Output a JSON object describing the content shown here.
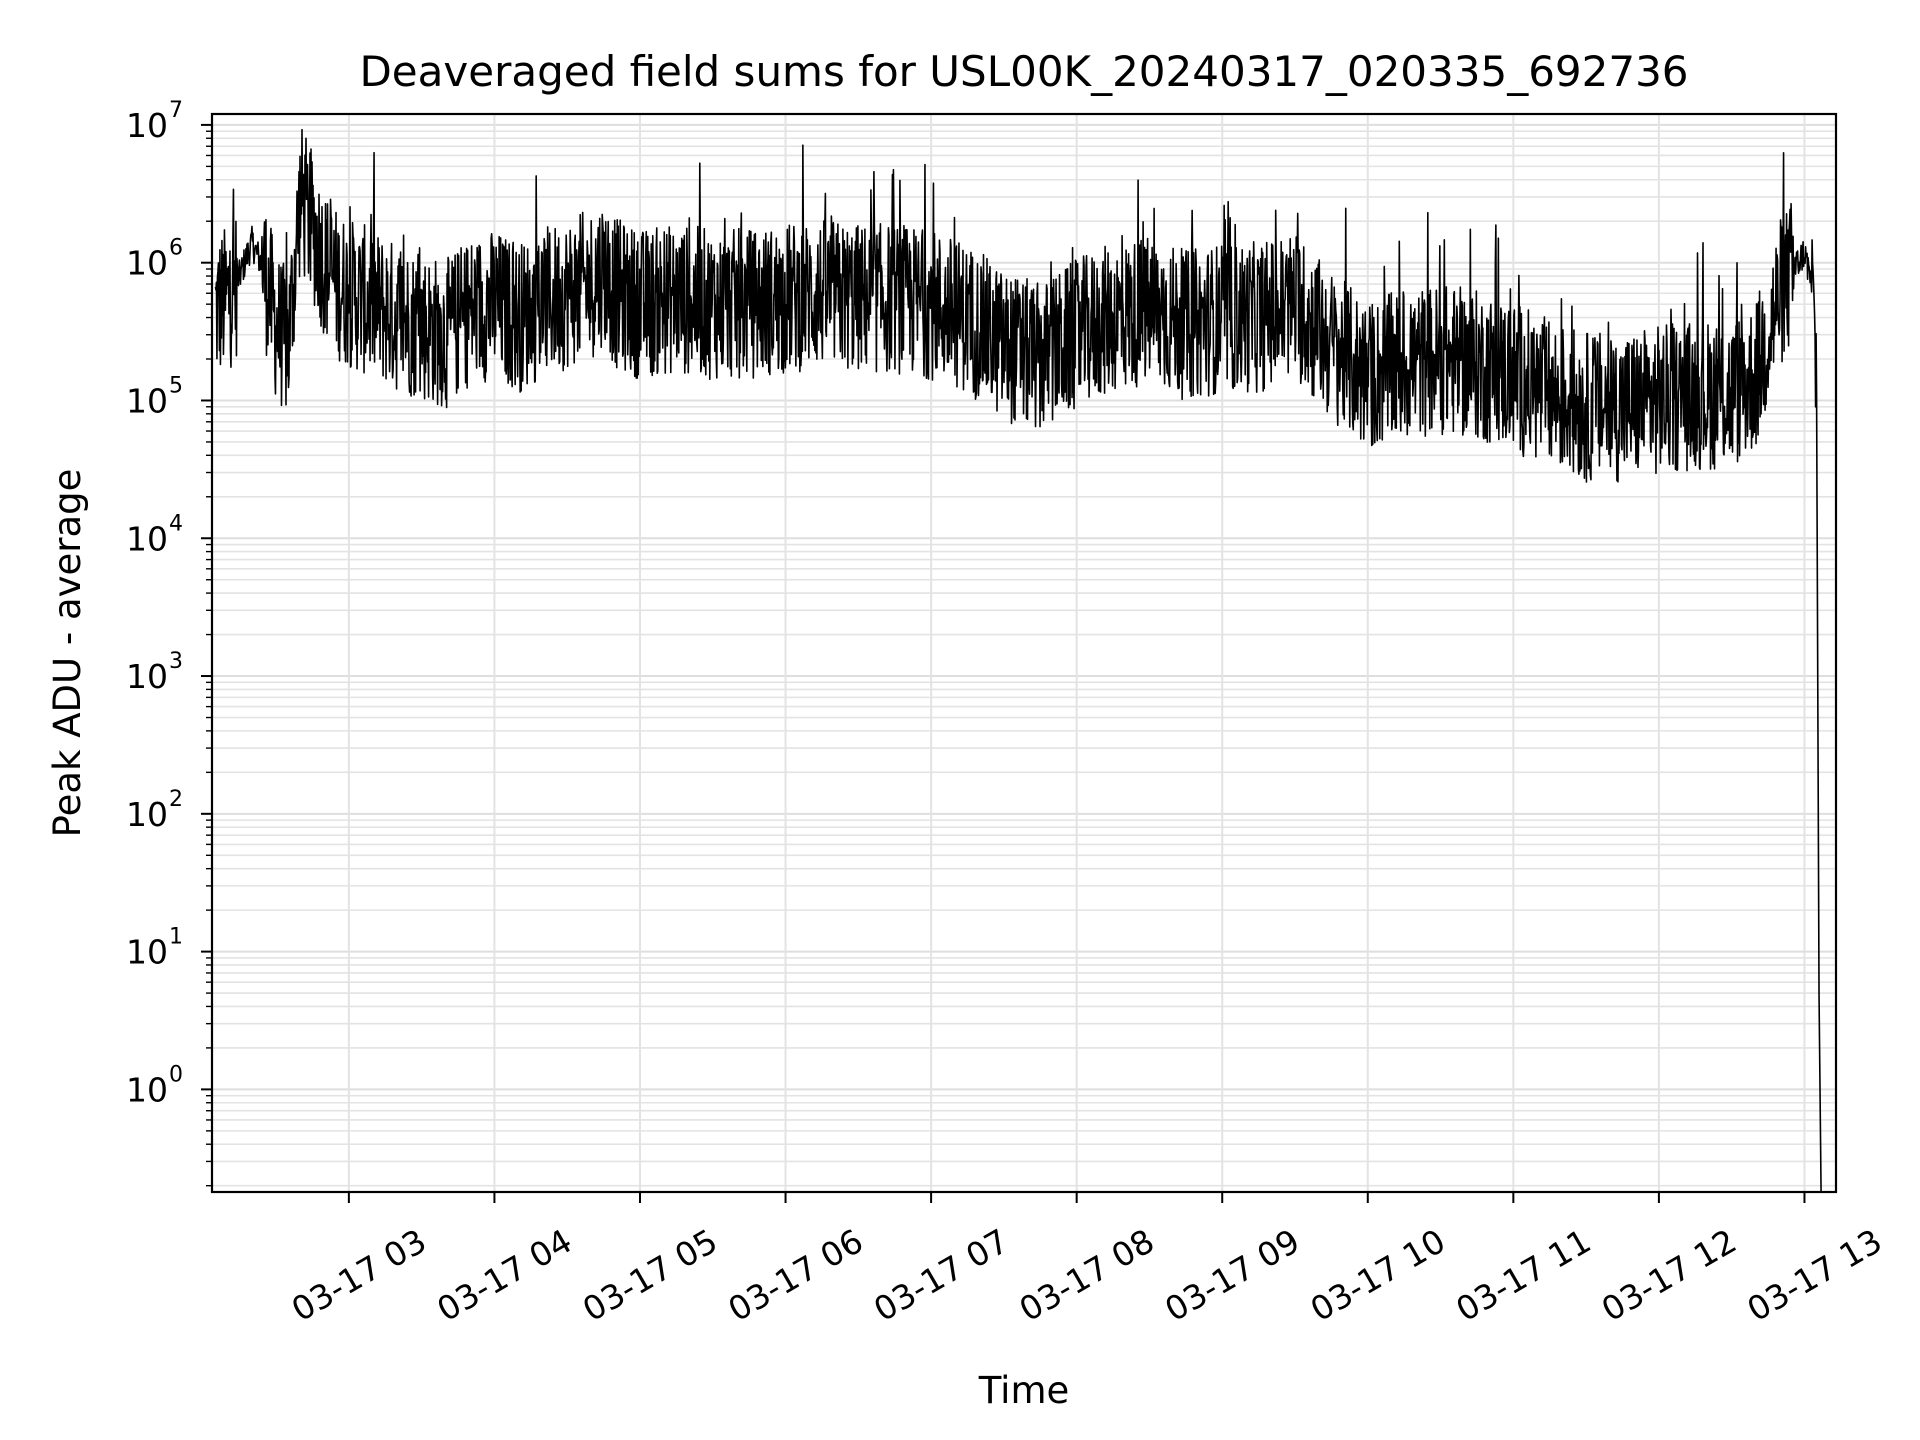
{
  "chart_data": {
    "type": "line",
    "title": "Deaveraged field sums for USL00K_20240317_020335_692736",
    "xlabel": "Time",
    "ylabel": "Peak ADU - average",
    "yscale": "log",
    "ylim": [
      0.18,
      12000000
    ],
    "xlim": [
      "03-17 02:03:35",
      "03-17 13:13:00"
    ],
    "grid": "major and minor, light gray",
    "line_color": "#000000",
    "x_ticks": [
      "03-17 03",
      "03-17 04",
      "03-17 05",
      "03-17 06",
      "03-17 07",
      "03-17 08",
      "03-17 09",
      "03-17 10",
      "03-17 11",
      "03-17 12",
      "03-17 13"
    ],
    "y_ticks": [
      {
        "value": 1,
        "base": "10",
        "exp": "0"
      },
      {
        "value": 10,
        "base": "10",
        "exp": "1"
      },
      {
        "value": 100,
        "base": "10",
        "exp": "2"
      },
      {
        "value": 1000,
        "base": "10",
        "exp": "3"
      },
      {
        "value": 10000,
        "base": "10",
        "exp": "4"
      },
      {
        "value": 100000,
        "base": "10",
        "exp": "5"
      },
      {
        "value": 1000000,
        "base": "10",
        "exp": "6"
      },
      {
        "value": 10000000,
        "base": "10",
        "exp": "7"
      }
    ],
    "series": [
      {
        "x": [
          "03-17 02:05",
          "03-17 02:10",
          "03-17 02:15",
          "03-17 02:20",
          "03-17 02:25",
          "03-17 02:30",
          "03-17 02:35",
          "03-17 02:40",
          "03-17 02:45",
          "03-17 02:50",
          "03-17 02:55",
          "03-17 03:00",
          "03-17 03:10",
          "03-17 03:20",
          "03-17 03:30",
          "03-17 03:40",
          "03-17 03:50",
          "03-17 04:00",
          "03-17 04:10",
          "03-17 04:20",
          "03-17 04:30",
          "03-17 04:40",
          "03-17 04:45",
          "03-17 04:50",
          "03-17 05:00",
          "03-17 05:15",
          "03-17 05:30",
          "03-17 05:45",
          "03-17 06:00",
          "03-17 06:15",
          "03-17 06:30",
          "03-17 06:45",
          "03-17 07:00",
          "03-17 07:15",
          "03-17 07:30",
          "03-17 07:45",
          "03-17 08:00",
          "03-17 08:15",
          "03-17 08:30",
          "03-17 08:45",
          "03-17 09:00",
          "03-17 09:15",
          "03-17 09:30",
          "03-17 09:45",
          "03-17 10:00",
          "03-17 10:15",
          "03-17 10:30",
          "03-17 10:45",
          "03-17 11:00",
          "03-17 11:15",
          "03-17 11:30",
          "03-17 11:45",
          "03-17 12:00",
          "03-17 12:15",
          "03-17 12:30",
          "03-17 12:40",
          "03-17 12:50",
          "03-17 13:00",
          "03-17 13:03",
          "03-17 13:05",
          "03-17 13:06",
          "03-17 13:07"
        ],
        "values": [
          450000,
          550000,
          800000,
          1400000,
          900000,
          350000,
          250000,
          3000000,
          1800000,
          1000000,
          700000,
          600000,
          500000,
          400000,
          350000,
          300000,
          450000,
          500000,
          400000,
          500000,
          600000,
          700000,
          900000,
          600000,
          500000,
          550000,
          500000,
          500000,
          550000,
          600000,
          550000,
          550000,
          500000,
          400000,
          250000,
          200000,
          300000,
          400000,
          450000,
          350000,
          400000,
          400000,
          500000,
          250000,
          150000,
          180000,
          200000,
          180000,
          150000,
          110000,
          90000,
          90000,
          100000,
          110000,
          110000,
          150000,
          600000,
          1200000,
          700000,
          150000,
          5,
          0.1
        ]
      }
    ]
  }
}
